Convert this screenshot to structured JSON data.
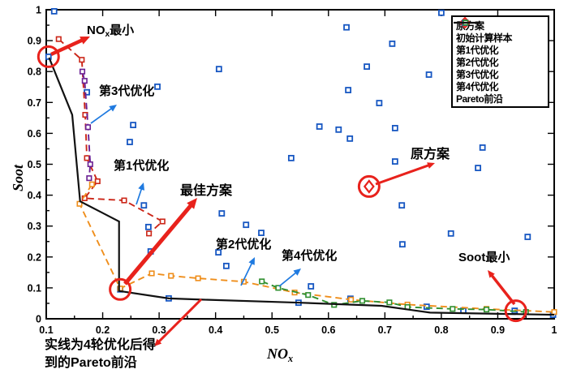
{
  "figure": {
    "background": "#ffffff",
    "frame_color": "#000000",
    "annotations": {
      "nox_min": {
        "pre": "NO",
        "sub": "x",
        "post": "最小"
      },
      "gen3_label": "第3代优化",
      "gen1_label": "第1代优化",
      "best_label": "最佳方案",
      "orig_label": "原方案",
      "gen2_label": "第2代优化",
      "gen4_label": "第4代优化",
      "soot_min": "Soot最小",
      "note_line1": "实线为4轮优化后得",
      "note_line2": "到的Pareto前沿"
    },
    "arrows": [
      {
        "name": "arrow-nox-min",
        "color": "#e8221c",
        "width": 4.5,
        "from": [
          63,
          67
        ],
        "to": [
          111,
          45
        ]
      },
      {
        "name": "arrow-orig",
        "color": "#e8221c",
        "width": 3,
        "from": [
          463,
          227
        ],
        "to": [
          536,
          201
        ]
      },
      {
        "name": "arrow-best",
        "color": "#e8221c",
        "width": 5,
        "from": [
          154,
          350
        ],
        "to": [
          243,
          244
        ]
      },
      {
        "name": "arrow-soot-min",
        "color": "#e8221c",
        "width": 3.5,
        "from": [
          634,
          375
        ],
        "to": [
          601,
          333
        ]
      },
      {
        "name": "arrow-note",
        "color": "#e8221c",
        "width": 3,
        "from": [
          248,
          369
        ],
        "to": [
          190,
          427
        ]
      },
      {
        "name": "arrow-gen1",
        "color": "#1f7ae0",
        "width": 1.7,
        "from": [
          168,
          252
        ],
        "to": [
          177,
          225
        ]
      },
      {
        "name": "arrow-gen3",
        "color": "#1f7ae0",
        "width": 1.7,
        "from": [
          112,
          152
        ],
        "to": [
          144,
          129
        ]
      },
      {
        "name": "arrow-gen2",
        "color": "#1f7ae0",
        "width": 1.7,
        "from": [
          297,
          352
        ],
        "to": [
          314,
          317
        ]
      },
      {
        "name": "arrow-gen4",
        "color": "#1f7ae0",
        "width": 1.7,
        "from": [
          344,
          353
        ],
        "to": [
          371,
          331
        ]
      }
    ],
    "legend": {
      "items": [
        {
          "label": "原方案",
          "symbol": "diamond",
          "color": "#e8221c"
        },
        {
          "label": "初始计算样本",
          "symbol": "square",
          "color": "#1757c2"
        },
        {
          "label": "第1代优化",
          "symbol": "dash-square",
          "color": "#cb2517"
        },
        {
          "label": "第2代优化",
          "symbol": "dash-square",
          "color": "#ef8e1b"
        },
        {
          "label": "第3代优化",
          "symbol": "dash-square",
          "color": "#6a1f93"
        },
        {
          "label": "第4代优化",
          "symbol": "dash-square",
          "color": "#2f8f2f"
        },
        {
          "label": "Pareto前沿",
          "symbol": "line",
          "color": "#111111"
        }
      ]
    },
    "axis": {
      "xlabel_pre": "NO",
      "xlabel_sub": "x",
      "ylabel": "Soot",
      "x_tick_labels": [
        "0.1",
        "0.2",
        "0.3",
        "0.4",
        "0.5",
        "0.6",
        "0.7",
        "0.8",
        "0.9",
        "1"
      ],
      "y_tick_labels": [
        "0",
        "0.1",
        "0.2",
        "0.3",
        "0.4",
        "0.5",
        "0.6",
        "0.7",
        "0.8",
        "0.9",
        "1"
      ]
    }
  },
  "chart_data": {
    "type": "scatter",
    "title": "",
    "xlabel": "NOx",
    "ylabel": "Soot",
    "xlim": [
      0.1,
      1.0
    ],
    "ylim": [
      0,
      1.0
    ],
    "grid": false,
    "legend_position": "upper right",
    "series": [
      {
        "name": "原方案",
        "type": "scatter-diamond",
        "color": "#e8221c",
        "points": [
          [
            0.672,
            0.428
          ]
        ]
      },
      {
        "name": "初始计算样本",
        "type": "scatter",
        "color": "#1757c2",
        "points": [
          [
            0.114,
            0.995
          ],
          [
            0.104,
            0.848
          ],
          [
            0.8,
            0.99
          ],
          [
            0.632,
            0.943
          ],
          [
            0.713,
            0.89
          ],
          [
            0.406,
            0.808
          ],
          [
            0.668,
            0.816
          ],
          [
            0.778,
            0.79
          ],
          [
            0.297,
            0.751
          ],
          [
            0.172,
            0.733
          ],
          [
            0.635,
            0.74
          ],
          [
            0.69,
            0.698
          ],
          [
            0.254,
            0.627
          ],
          [
            0.584,
            0.622
          ],
          [
            0.618,
            0.612
          ],
          [
            0.718,
            0.617
          ],
          [
            0.638,
            0.583
          ],
          [
            0.248,
            0.572
          ],
          [
            0.873,
            0.554
          ],
          [
            0.534,
            0.52
          ],
          [
            0.718,
            0.509
          ],
          [
            0.865,
            0.488
          ],
          [
            0.273,
            0.367
          ],
          [
            0.411,
            0.341
          ],
          [
            0.73,
            0.367
          ],
          [
            0.454,
            0.304
          ],
          [
            0.481,
            0.278
          ],
          [
            0.281,
            0.297
          ],
          [
            0.817,
            0.276
          ],
          [
            0.953,
            0.265
          ],
          [
            0.731,
            0.241
          ],
          [
            0.285,
            0.218
          ],
          [
            0.405,
            0.215
          ],
          [
            0.419,
            0.171
          ],
          [
            0.569,
            0.105
          ],
          [
            0.231,
            0.095
          ],
          [
            0.317,
            0.066
          ],
          [
            0.547,
            0.052
          ],
          [
            0.639,
            0.065
          ],
          [
            0.774,
            0.039
          ],
          [
            0.839,
            0.026
          ],
          [
            0.93,
            0.026
          ],
          [
            0.998,
            0.013
          ]
        ]
      },
      {
        "name": "第1代优化",
        "type": "dashed-line",
        "color": "#cb2517",
        "points": [
          [
            0.122,
            0.905
          ],
          [
            0.163,
            0.838
          ],
          [
            0.169,
            0.66
          ],
          [
            0.172,
            0.52
          ],
          [
            0.191,
            0.445
          ],
          [
            0.168,
            0.39
          ],
          [
            0.238,
            0.383
          ],
          [
            0.306,
            0.315
          ],
          [
            0.282,
            0.276
          ]
        ]
      },
      {
        "name": "第2代优化",
        "type": "dashed-line",
        "color": "#ef8e1b",
        "points": [
          [
            0.181,
            0.435
          ],
          [
            0.159,
            0.372
          ],
          [
            0.231,
            0.098
          ],
          [
            0.287,
            0.147
          ],
          [
            0.321,
            0.139
          ],
          [
            0.369,
            0.131
          ],
          [
            0.45,
            0.12
          ],
          [
            0.54,
            0.085
          ],
          [
            0.64,
            0.062
          ],
          [
            0.74,
            0.046
          ],
          [
            0.88,
            0.032
          ],
          [
            1.0,
            0.022
          ]
        ]
      },
      {
        "name": "第3代优化",
        "type": "dashed-line",
        "color": "#6a1f93",
        "points": [
          [
            0.164,
            0.8
          ],
          [
            0.168,
            0.77
          ],
          [
            0.174,
            0.62
          ],
          [
            0.178,
            0.5
          ],
          [
            0.176,
            0.455
          ]
        ]
      },
      {
        "name": "第4代优化",
        "type": "dashed-line",
        "color": "#2f8f2f",
        "points": [
          [
            0.482,
            0.121
          ],
          [
            0.511,
            0.1
          ],
          [
            0.564,
            0.077
          ],
          [
            0.61,
            0.045
          ],
          [
            0.66,
            0.058
          ],
          [
            0.708,
            0.053
          ],
          [
            0.74,
            0.038
          ],
          [
            0.82,
            0.032
          ],
          [
            0.88,
            0.03
          ],
          [
            0.95,
            0.022
          ]
        ]
      },
      {
        "name": "Pareto前沿",
        "type": "line",
        "color": "#111111",
        "points": [
          [
            0.105,
            0.845
          ],
          [
            0.146,
            0.66
          ],
          [
            0.16,
            0.38
          ],
          [
            0.229,
            0.315
          ],
          [
            0.229,
            0.09
          ],
          [
            0.317,
            0.066
          ],
          [
            0.377,
            0.062
          ],
          [
            0.55,
            0.052
          ],
          [
            0.694,
            0.042
          ],
          [
            0.78,
            0.02
          ],
          [
            1.0,
            0.013
          ]
        ]
      }
    ],
    "highlights": [
      {
        "x": 0.104,
        "y": 0.848,
        "note": "NOx最小"
      },
      {
        "x": 0.231,
        "y": 0.095,
        "note": "最佳方案"
      },
      {
        "x": 0.672,
        "y": 0.428,
        "note": "原方案"
      },
      {
        "x": 0.932,
        "y": 0.026,
        "note": "Soot最小"
      }
    ],
    "highlight_color": "#e8221c"
  }
}
